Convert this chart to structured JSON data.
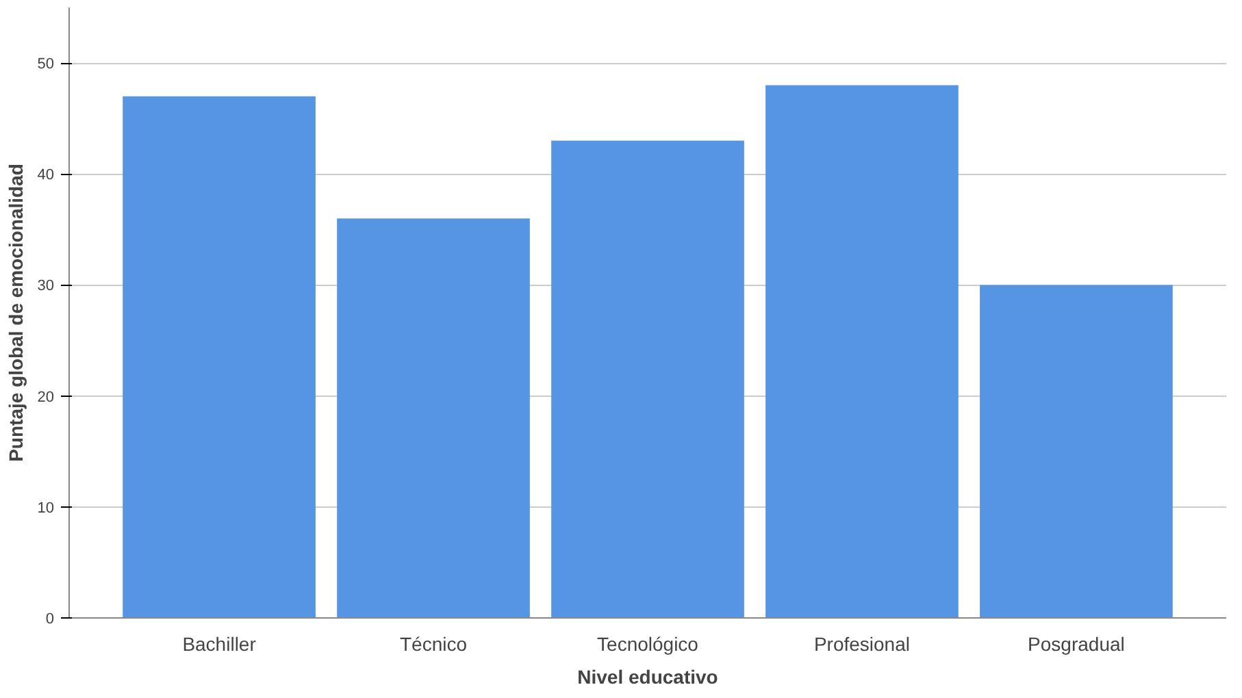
{
  "chart_data": {
    "type": "bar",
    "xlabel": "Nivel educativo",
    "ylabel": "Puntaje global de emocionalidad",
    "categories": [
      "Bachiller",
      "Técnico",
      "Tecnológico",
      "Profesional",
      "Posgradual"
    ],
    "values": [
      47,
      36,
      43,
      48,
      30
    ],
    "color": "#5595e3",
    "ylim": [
      0,
      55
    ],
    "yticks": [
      0,
      10,
      20,
      30,
      40,
      50
    ],
    "grid": "y"
  }
}
